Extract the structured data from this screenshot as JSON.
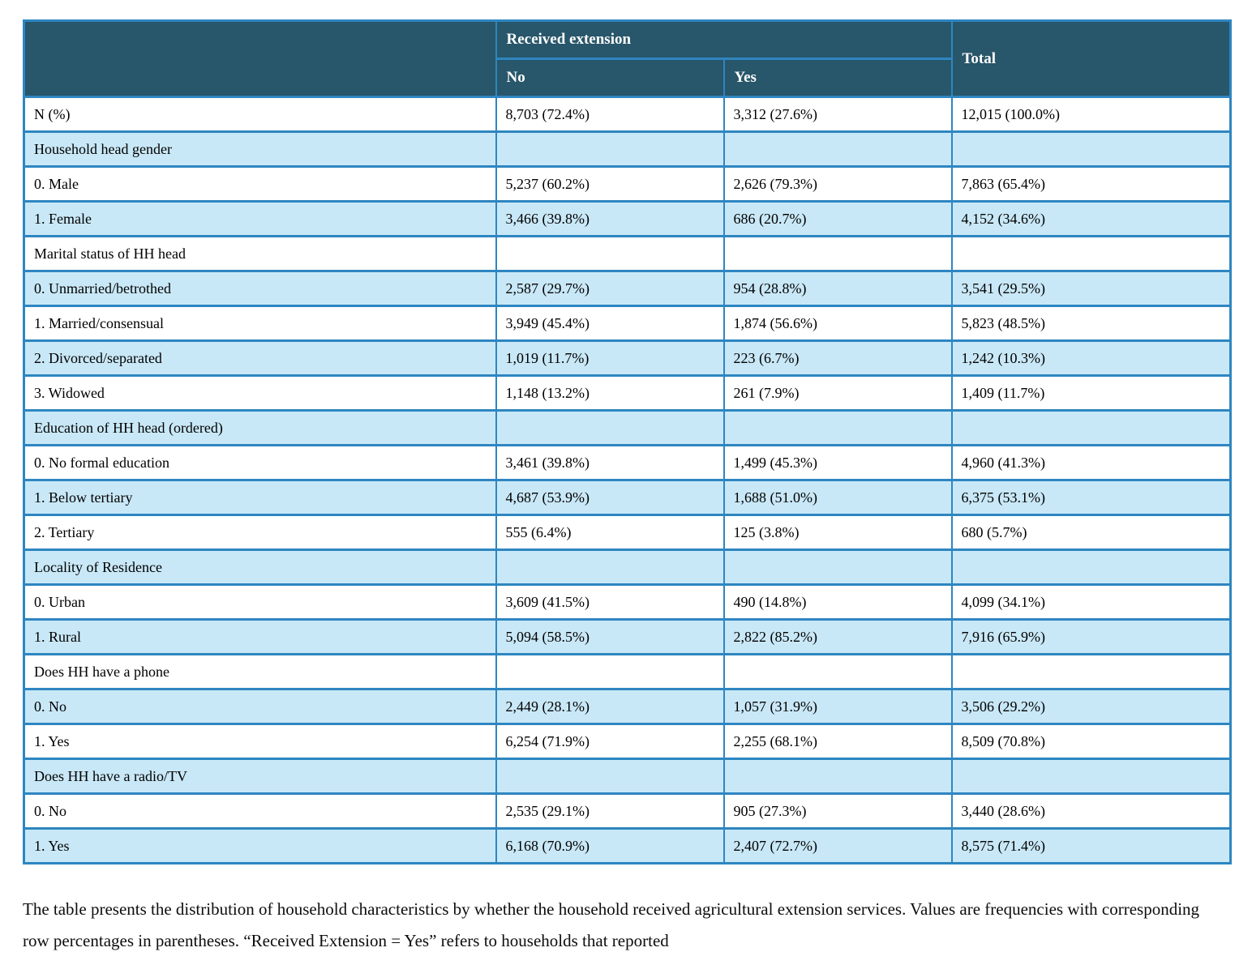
{
  "table": {
    "header": {
      "group_label": "Received extension",
      "col_no": "No",
      "col_yes": "Yes",
      "col_total": "Total"
    },
    "rows": [
      {
        "type": "data",
        "label": "N (%)",
        "no": "8,703 (72.4%)",
        "yes": "3,312 (27.6%)",
        "total": "12,015 (100.0%)"
      },
      {
        "type": "section",
        "label": "Household head gender",
        "no": "",
        "yes": "",
        "total": ""
      },
      {
        "type": "data",
        "label": "0. Male",
        "no": "5,237 (60.2%)",
        "yes": "2,626 (79.3%)",
        "total": "7,863 (65.4%)"
      },
      {
        "type": "data",
        "label": "1. Female",
        "no": "3,466 (39.8%)",
        "yes": "686 (20.7%)",
        "total": "4,152 (34.6%)"
      },
      {
        "type": "section",
        "label": "Marital status of HH head",
        "no": "",
        "yes": "",
        "total": ""
      },
      {
        "type": "data",
        "label": "0. Unmarried/betrothed",
        "no": "2,587 (29.7%)",
        "yes": "954 (28.8%)",
        "total": "3,541 (29.5%)"
      },
      {
        "type": "data",
        "label": "1. Married/consensual",
        "no": "3,949 (45.4%)",
        "yes": "1,874 (56.6%)",
        "total": "5,823 (48.5%)"
      },
      {
        "type": "data",
        "label": "2. Divorced/separated",
        "no": "1,019 (11.7%)",
        "yes": "223 (6.7%)",
        "total": "1,242 (10.3%)"
      },
      {
        "type": "data",
        "label": "3. Widowed",
        "no": "1,148 (13.2%)",
        "yes": "261 (7.9%)",
        "total": "1,409 (11.7%)"
      },
      {
        "type": "section",
        "label": "Education of HH head (ordered)",
        "no": "",
        "yes": "",
        "total": ""
      },
      {
        "type": "data",
        "label": "0. No formal education",
        "no": "3,461 (39.8%)",
        "yes": "1,499 (45.3%)",
        "total": "4,960 (41.3%)"
      },
      {
        "type": "data",
        "label": "1. Below tertiary",
        "no": "4,687 (53.9%)",
        "yes": "1,688 (51.0%)",
        "total": "6,375 (53.1%)"
      },
      {
        "type": "data",
        "label": "2. Tertiary",
        "no": "555 (6.4%)",
        "yes": "125 (3.8%)",
        "total": "680 (5.7%)"
      },
      {
        "type": "section",
        "label": "Locality of Residence",
        "no": "",
        "yes": "",
        "total": ""
      },
      {
        "type": "data",
        "label": "0. Urban",
        "no": "3,609 (41.5%)",
        "yes": "490 (14.8%)",
        "total": "4,099 (34.1%)"
      },
      {
        "type": "data",
        "label": "1. Rural",
        "no": "5,094 (58.5%)",
        "yes": "2,822 (85.2%)",
        "total": "7,916 (65.9%)"
      },
      {
        "type": "section",
        "label": "Does HH have a phone",
        "no": "",
        "yes": "",
        "total": ""
      },
      {
        "type": "data",
        "label": "0. No",
        "no": "2,449 (28.1%)",
        "yes": "1,057 (31.9%)",
        "total": "3,506 (29.2%)"
      },
      {
        "type": "data",
        "label": "1. Yes",
        "no": "6,254 (71.9%)",
        "yes": "2,255 (68.1%)",
        "total": "8,509 (70.8%)"
      },
      {
        "type": "section",
        "label": "Does HH have a radio/TV",
        "no": "",
        "yes": "",
        "total": ""
      },
      {
        "type": "data",
        "label": "0. No",
        "no": "2,535 (29.1%)",
        "yes": "905 (27.3%)",
        "total": "3,440 (28.6%)"
      },
      {
        "type": "data",
        "label": "1. Yes",
        "no": "6,168 (70.9%)",
        "yes": "2,407 (72.7%)",
        "total": "8,575 (71.4%)"
      }
    ]
  },
  "caption": "The table presents the distribution of household characteristics by whether the household received agricultural extension services. Values are frequencies with corresponding row percentages in parentheses. “Received Extension = Yes” refers to households that reported",
  "colors": {
    "header_bg": "#28566a",
    "border": "#2e86c1",
    "row_even_bg": "#c9e8f7",
    "row_odd_bg": "#ffffff",
    "header_text": "#ffffff",
    "body_text": "#000000"
  }
}
